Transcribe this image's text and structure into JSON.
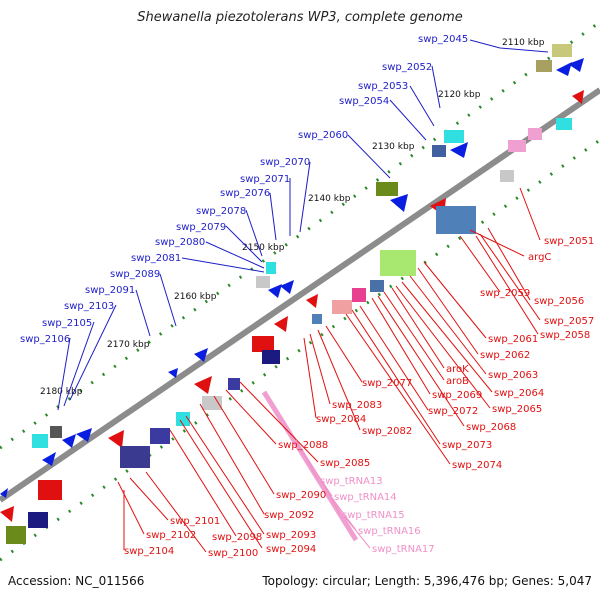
{
  "title": "Shewanella piezotolerans WP3, complete genome",
  "footer": {
    "accession": "Accession: NC_011566",
    "summary": "Topology: circular; Length: 5,396,476 bp; Genes: 5,047"
  },
  "colors": {
    "backbone": "#8c8c8c",
    "upper_label": "#1e1ec8",
    "lower_label": "#e01010",
    "trna_label": "#f090c8",
    "tick": "#2a8a2a"
  },
  "kbp_marks": [
    "2110 kbp",
    "2120 kbp",
    "2130 kbp",
    "2140 kbp",
    "2150 kbp",
    "2160 kbp",
    "2170 kbp",
    "2180 kbp"
  ],
  "upper_labels": [
    "swp_2045",
    "swp_2052",
    "swp_2053",
    "swp_2054",
    "swp_2060",
    "swp_2070",
    "swp_2071",
    "swp_2076",
    "swp_2078",
    "swp_2079",
    "swp_2080",
    "swp_2081",
    "swp_2089",
    "swp_2091",
    "swp_2103",
    "swp_2105",
    "swp_2106"
  ],
  "lower_labels": [
    "swp_2051",
    "argC",
    "swp_2056",
    "swp_2057",
    "swp_2058",
    "swp_2059",
    "swp_2061",
    "swp_2062",
    "swp_2063",
    "swp_2064",
    "swp_2065",
    "aroK",
    "aroB",
    "swp_2068",
    "swp_2069",
    "swp_2072",
    "swp_2073",
    "swp_2074",
    "swp_2077",
    "swp_2082",
    "swp_2083",
    "swp_2084",
    "swp_2085",
    "swp_2088",
    "swp_2090",
    "swp_2092",
    "swp_2093",
    "swp_2094",
    "swp_2098",
    "swp_2100",
    "swp_2101",
    "swp_2102",
    "swp_2104"
  ],
  "trna_labels": [
    "swp_tRNA13",
    "swp_tRNA14",
    "swp_tRNA15",
    "swp_tRNA16",
    "swp_tRNA17"
  ]
}
